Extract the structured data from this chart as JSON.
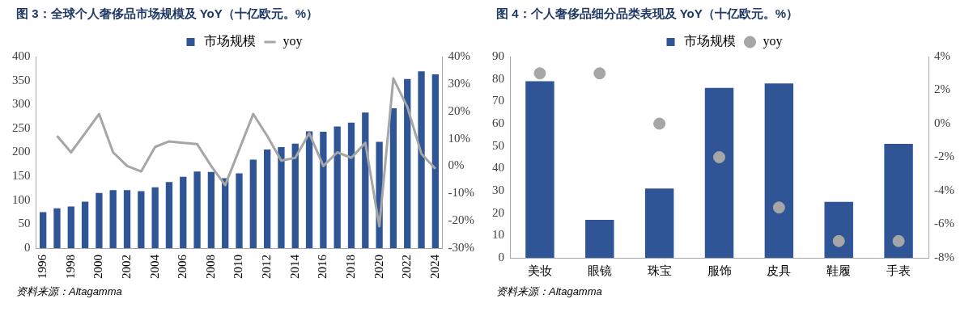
{
  "chart_data": [
    {
      "type": "bar",
      "title": "图 3：全球个人奢侈品市场规模及 YoY（十亿欧元。%）",
      "annotations": [
        "资料来源：Altagamma"
      ],
      "categories": [
        "1996",
        null,
        "1998",
        null,
        "2000",
        null,
        "2002",
        null,
        "2004",
        null,
        "2006",
        null,
        "2008",
        null,
        "2010",
        null,
        "2012",
        null,
        "2014",
        null,
        "2016",
        null,
        "2018",
        null,
        "2020",
        null,
        "2022",
        null,
        "2024"
      ],
      "series": [
        {
          "name": "市场规模",
          "color": "#2f5597",
          "values": [
            75,
            83,
            87,
            97,
            115,
            121,
            121,
            119,
            127,
            138,
            149,
            160,
            159,
            146,
            156,
            185,
            206,
            211,
            218,
            244,
            243,
            254,
            262,
            283,
            222,
            292,
            353,
            369,
            363
          ]
        },
        {
          "name": "yoy",
          "type": "line",
          "axis": "y2",
          "color": "#a6a6a6",
          "marker": "none",
          "line_style": "solid",
          "values": [
            null,
            11,
            5,
            12,
            19,
            5,
            0,
            -2,
            7,
            9,
            8.5,
            8,
            0,
            -7,
            6,
            19,
            11,
            2,
            3,
            12,
            0,
            5,
            3,
            8.5,
            -22,
            32,
            21.6,
            4.5,
            -1
          ]
        }
      ],
      "ylim": [
        0,
        400
      ],
      "yticks": [
        0,
        50,
        100,
        150,
        200,
        250,
        300,
        350,
        400
      ],
      "y2lim": [
        -30,
        40
      ],
      "y2ticks": [
        {
          "value": -30,
          "label": "-30%"
        },
        {
          "value": -20,
          "label": "-20%"
        },
        {
          "value": -10,
          "label": "-10%"
        },
        {
          "value": 0,
          "label": "0%"
        },
        {
          "value": 10,
          "label": "10%"
        },
        {
          "value": 20,
          "label": "20%"
        },
        {
          "value": 30,
          "label": "30%"
        },
        {
          "value": 40,
          "label": "40%"
        }
      ],
      "grid": false,
      "legend": "top"
    },
    {
      "type": "bar",
      "title": "图 4：个人奢侈品细分品类表现及 YoY（十亿欧元。%）",
      "annotations": [
        "资料来源：Altagamma"
      ],
      "categories": [
        "美妆",
        "眼镜",
        "珠宝",
        "服饰",
        "皮具",
        "鞋履",
        "手表"
      ],
      "series": [
        {
          "name": "市场规模",
          "color": "#2f5597",
          "values": [
            79,
            17,
            31,
            76,
            78,
            25,
            51
          ]
        },
        {
          "name": "yoy",
          "type": "scatter",
          "axis": "y2",
          "color": "#a6a6a6",
          "marker": "circle",
          "values": [
            3,
            3,
            0,
            -2,
            -5,
            -7,
            -7
          ]
        }
      ],
      "ylim": [
        0,
        90
      ],
      "yticks": [
        0,
        10,
        20,
        30,
        40,
        50,
        60,
        70,
        80,
        90
      ],
      "y2lim": [
        -8,
        4
      ],
      "y2ticks": [
        {
          "value": -8,
          "label": "-8%"
        },
        {
          "value": -6,
          "label": "-6%"
        },
        {
          "value": -4,
          "label": "-4%"
        },
        {
          "value": -2,
          "label": "-2%"
        },
        {
          "value": 0,
          "label": "0%"
        },
        {
          "value": 2,
          "label": "2%"
        },
        {
          "value": 4,
          "label": "4%"
        }
      ],
      "grid": false,
      "legend": "top"
    }
  ]
}
